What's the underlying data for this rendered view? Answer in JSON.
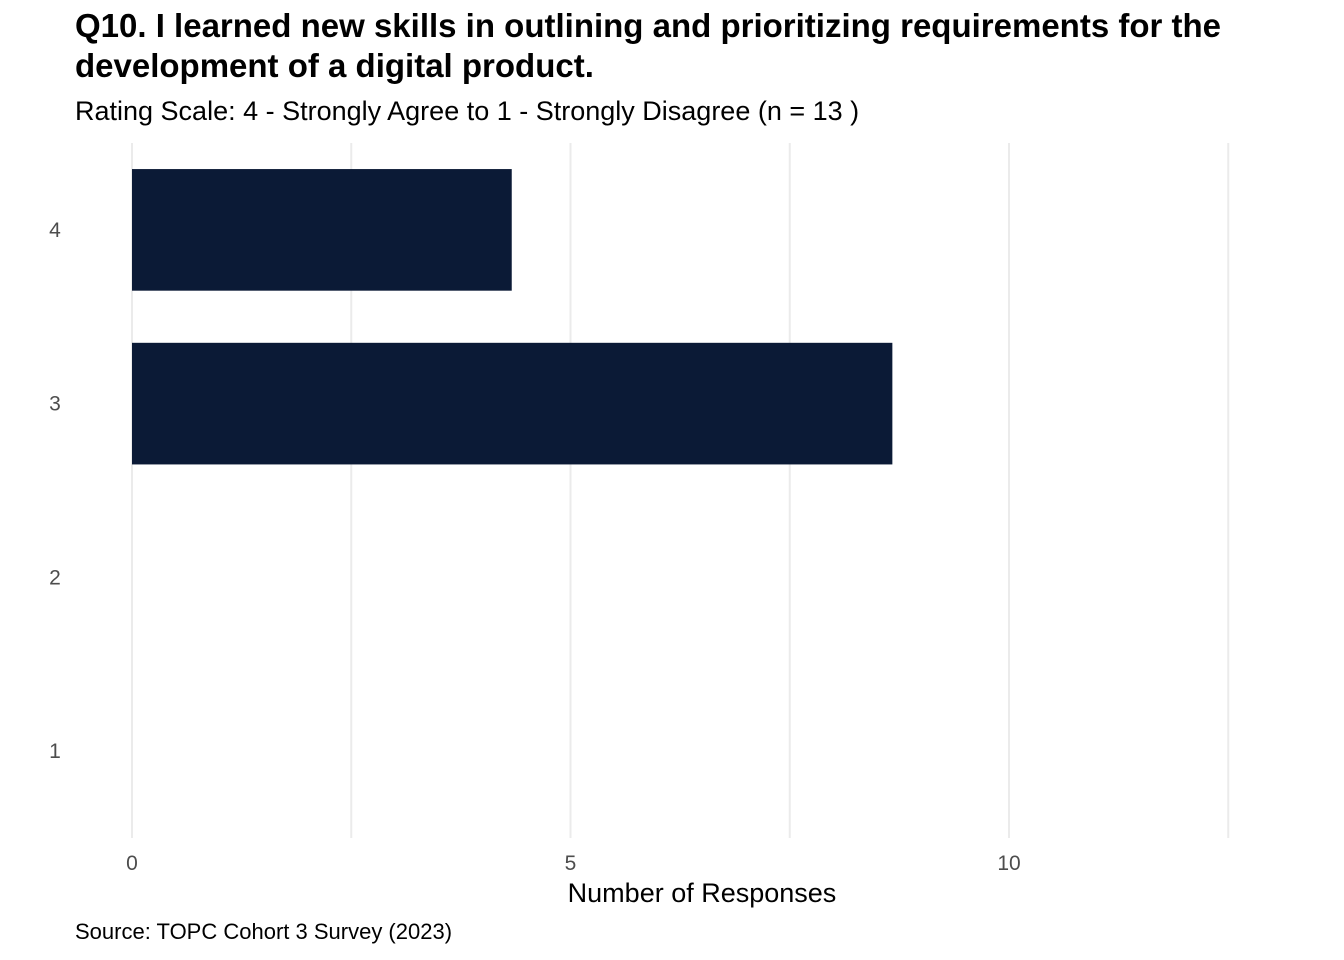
{
  "chart_data": {
    "type": "bar",
    "orientation": "horizontal",
    "title": "Q10. I learned new skills in outlining and prioritizing requirements for the development of a digital product.",
    "subtitle": "Rating Scale: 4 - Strongly Agree to 1 - Strongly Disagree (n = 13 )",
    "xlabel": "Number of Responses",
    "ylabel": "",
    "caption": "Source: TOPC Cohort 3 Survey (2023)",
    "categories": [
      "4",
      "3",
      "2",
      "1"
    ],
    "values": [
      4.33,
      8.67,
      0,
      0
    ],
    "xlim": [
      0,
      12.5
    ],
    "x_ticks": [
      0,
      5,
      10
    ],
    "x_minor_ticks": [
      2.5,
      7.5,
      12.5
    ],
    "grid": "vertical",
    "legend": "none",
    "bar_color": "#0b1a36",
    "grid_color": "#ebebeb"
  }
}
